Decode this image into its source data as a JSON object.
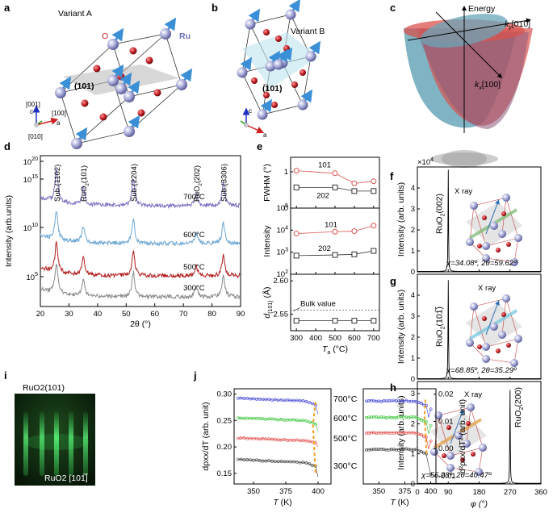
{
  "panel_labels": {
    "a": "a",
    "b": "b",
    "c": "c",
    "d": "d",
    "e": "e",
    "f": "f",
    "g": "g",
    "h": "h",
    "i": "i",
    "j": "j"
  },
  "panel_a": {
    "title": "Variant A",
    "atom_labels": {
      "ru": "Ru",
      "o": "O"
    },
    "plane_label": "(101)",
    "axes": {
      "c": "[001]",
      "a": "[100]",
      "b": "[010]",
      "c_short": "c",
      "a_short": "a",
      "b_short": "b"
    },
    "colors": {
      "ru": "#9fa3d6",
      "o": "#c0262b",
      "spin": "#3a8fd6",
      "plane": "#b8b8b8"
    }
  },
  "panel_b": {
    "title": "Variant B",
    "plane_label": "(̅101)",
    "plane_label_plain": "(101)",
    "axes": {
      "c_short": "c",
      "a_short": "a"
    },
    "colors": {
      "plane": "#bfe5f0"
    }
  },
  "panel_c": {
    "energy_label": "Energy",
    "ky_label": "k",
    "ky_sub": "y",
    "ky_dir": "[010]",
    "kx_label": "k",
    "kx_sub": "x",
    "kx_dir": "[100]",
    "colors": {
      "band1": "#d9534f",
      "band2": "#6aa6b8"
    }
  },
  "chart_data": [
    {
      "id": "d",
      "type": "line",
      "xlabel": "2θ (°)",
      "ylabel": "Intensity (arb.units)",
      "xlim": [
        20,
        90
      ],
      "xticks": [
        20,
        30,
        40,
        50,
        60,
        70,
        80,
        90
      ],
      "yscale": "log",
      "ytick_labels": [
        "10^5",
        "10^10",
        "10^15",
        "10^20"
      ],
      "peak_labels": [
        {
          "x": 25.6,
          "text": "Sub.(1̅2)",
          "display": "Sub.(1102)"
        },
        {
          "x": 35.0,
          "text": "RuO2(101)"
        },
        {
          "x": 52.5,
          "text": "Sub.(2204)"
        },
        {
          "x": 74.5,
          "text": "RuO2(202)"
        },
        {
          "x": 84.0,
          "text": "Sub.(3306)"
        }
      ],
      "series": [
        {
          "name": "700°C",
          "color": "#7a6fc0"
        },
        {
          "name": "600°C",
          "color": "#6ea7d3"
        },
        {
          "name": "500°C",
          "color": "#b21e1e"
        },
        {
          "name": "300°C",
          "color": "#8a8a8a"
        }
      ]
    },
    {
      "id": "e",
      "type": "line",
      "xlabel": "T",
      "xlabel_sub": "a",
      "xlabel_unit": "(°C)",
      "xlim": [
        270,
        730
      ],
      "xticks": [
        300,
        400,
        500,
        600,
        700
      ],
      "x": [
        300,
        500,
        600,
        700
      ],
      "subplots": [
        {
          "ylabel": "FWHM (°)",
          "ylim": [
            0,
            1.4
          ],
          "yticks": [
            0,
            1
          ],
          "series": [
            {
              "name": "101",
              "color": "#d9534f",
              "values": [
                1.03,
                0.96,
                0.68,
                0.74
              ]
            },
            {
              "name": "202",
              "color": "#333333",
              "values": [
                0.57,
                0.57,
                0.47,
                0.47
              ]
            }
          ]
        },
        {
          "ylabel": "Intensity",
          "yscale": "log",
          "ylim": [
            100,
            100000
          ],
          "ytick_labels": [
            "10^2",
            "10^3",
            "10^4",
            "10^5"
          ],
          "series": [
            {
              "name": "101",
              "color": "#d9534f",
              "values": [
                7000,
                8500,
                9000,
                16000
              ]
            },
            {
              "name": "202",
              "color": "#333333",
              "values": [
                700,
                750,
                800,
                1150
              ]
            }
          ]
        },
        {
          "ylabel": "d(101) (Å)",
          "ylim": [
            2.525,
            2.61
          ],
          "yticks": [
            2.55,
            2.6
          ],
          "ytick_labels": [
            "2.55",
            "2.60"
          ],
          "annotation": "Bulk value",
          "reference_line": 2.556,
          "series": [
            {
              "name": "d101",
              "color": "#333333",
              "values": [
                2.54,
                2.54,
                2.54,
                2.54
              ]
            }
          ]
        }
      ]
    },
    {
      "id": "f",
      "type": "line",
      "ylabel": "Intensity (arb. units)",
      "multiplier": "×10^4",
      "ylim": [
        0,
        5
      ],
      "yticks": [
        0,
        1,
        2,
        3,
        4
      ],
      "peak_label": "RuO2(002)",
      "peak_phi": 90,
      "peak_value": 4.85,
      "xray_label": "X ray",
      "annotation": "χ=34.08º, 2θ=59.62º"
    },
    {
      "id": "g",
      "type": "line",
      "ylabel": "Intensity (arb. units)",
      "ylim": [
        0,
        5
      ],
      "yticks": [
        0,
        1,
        2,
        3,
        4
      ],
      "peak_label": "RuO2(101̅)",
      "peak_label_plain": "RuO2(10-1)",
      "peak_phi": 90,
      "peak_value": 4.7,
      "xray_label": "X ray",
      "annotation": "χ=68.85º, 2θ=35.29º"
    },
    {
      "id": "h",
      "type": "line",
      "ylabel": "Intensity (arb. units)",
      "xlabel": "φ (°)",
      "xlim": [
        0,
        360
      ],
      "xticks": [
        0,
        90,
        180,
        270,
        360
      ],
      "ylim": [
        0,
        3.4
      ],
      "yticks": [
        0,
        1,
        2,
        3
      ],
      "peak_label": "RuO2(200)",
      "peak_phi": 270,
      "peak_value": 3.1,
      "xray_label": "X ray",
      "annotation": "χ=55.28º, 2θ=40.47º"
    },
    {
      "id": "j",
      "type": "line",
      "left": {
        "xlabel": "T (K)",
        "ylabel": "dρxx/dT (arb. unit)",
        "xlim": [
          335,
          410
        ],
        "xticks": [
          350,
          375,
          400
        ],
        "ylim": [
          0.13,
          0.31
        ],
        "yticks": [
          0.15,
          0.2,
          0.25,
          0.3
        ],
        "ytick_labels": [
          "0.15",
          "0.20",
          "0.25",
          "0.30"
        ],
        "series": [
          {
            "name": "700°C",
            "color": "#3b3bd6",
            "start": 0.292,
            "end_drop": 0.262
          },
          {
            "name": "600°C",
            "color": "#2ec22e",
            "start": 0.255,
            "end_drop": 0.23
          },
          {
            "name": "500°C",
            "color": "#e04040",
            "start": 0.217,
            "end_drop": 0.2
          },
          {
            "name": "300°C",
            "color": "#333333",
            "start": 0.176,
            "end_drop": 0.143
          }
        ]
      },
      "right": {
        "xlabel": "T (K)",
        "ylabel": "d²ρxx/dT² (arb. unit)",
        "xlim": [
          335,
          405
        ],
        "xticks": [
          350,
          375,
          400
        ],
        "ylim": [
          -0.013,
          0.022
        ],
        "yticks": [
          -0.01,
          0,
          0.01,
          0.02
        ],
        "ytick_labels": [
          "-0.01",
          "0.00",
          "0.01",
          "0.02"
        ],
        "series": [
          {
            "name": "700°C",
            "color": "#3b3bd6",
            "level": 0.0175
          },
          {
            "name": "600°C",
            "color": "#2ec22e",
            "level": 0.0115
          },
          {
            "name": "500°C",
            "color": "#e04040",
            "level": 0.0058
          },
          {
            "name": "300°C",
            "color": "#333333",
            "level": -0.0003
          }
        ]
      },
      "temp_labels": [
        "700°C",
        "600°C",
        "500°C",
        "300°C"
      ],
      "transition_color": "#f0a020"
    }
  ],
  "panel_i": {
    "title": "RuO2(101)",
    "direction": "RuO2 [101̅]",
    "colors": {
      "background": "#0f2a0f",
      "streak": "#3ddc5a"
    }
  }
}
